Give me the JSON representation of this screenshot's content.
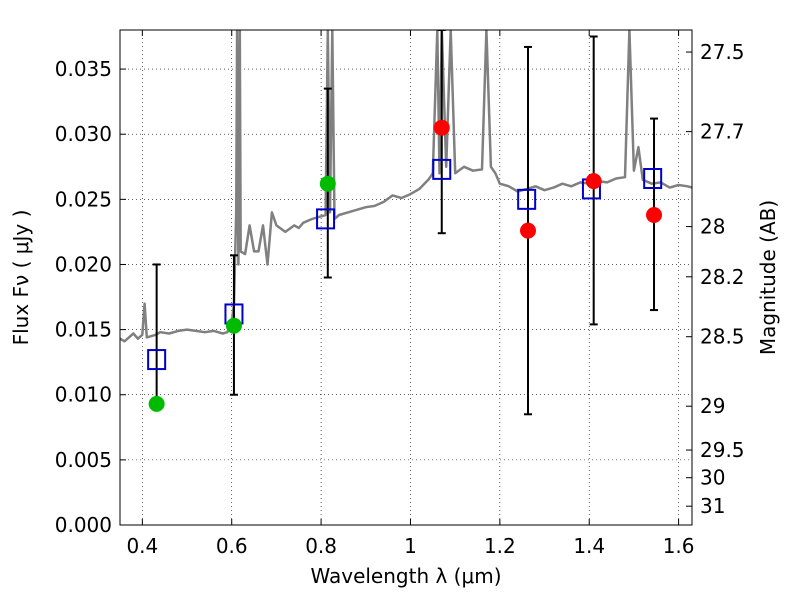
{
  "chart_data": {
    "type": "scatter",
    "xlabel": "Wavelength  λ (μm)",
    "ylabel": "Flux  Fν  ( μJy )",
    "y2label": "Magnitude (AB)",
    "xlim": [
      0.35,
      1.63
    ],
    "ylim": [
      0.0,
      0.038
    ],
    "x_ticks": [
      0.4,
      0.6,
      0.8,
      1.0,
      1.2,
      1.4,
      1.6
    ],
    "x_tick_labels": [
      "0.4",
      "0.6",
      "0.8",
      "1",
      "1.2",
      "1.4",
      "1.6"
    ],
    "y_ticks": [
      0.0,
      0.005,
      0.01,
      0.015,
      0.02,
      0.025,
      0.03,
      0.035
    ],
    "y_tick_labels": [
      "0.000",
      "0.005",
      "0.010",
      "0.015",
      "0.020",
      "0.025",
      "0.030",
      "0.035"
    ],
    "y2_ticks": [
      27.5,
      27.7,
      28,
      28.2,
      28.5,
      29,
      29.5,
      30,
      31
    ],
    "y2_tick_labels": [
      "27.5",
      "27.7",
      "28",
      "28.2",
      "28.5",
      "29",
      "29.5",
      "30",
      "31"
    ],
    "grid": true,
    "colors": {
      "spectrum": "#808080",
      "model": "#0000cc",
      "observed_green": "#00bb00",
      "observed_red": "#ff0000",
      "errorbar": "#000000"
    },
    "spectrum": {
      "x": [
        0.35,
        0.36,
        0.38,
        0.39,
        0.4,
        0.405,
        0.41,
        0.42,
        0.43,
        0.44,
        0.46,
        0.48,
        0.5,
        0.52,
        0.54,
        0.56,
        0.58,
        0.59,
        0.6,
        0.605,
        0.61,
        0.612,
        0.615,
        0.618,
        0.62,
        0.63,
        0.64,
        0.65,
        0.66,
        0.67,
        0.68,
        0.69,
        0.7,
        0.72,
        0.74,
        0.75,
        0.76,
        0.78,
        0.8,
        0.81,
        0.815,
        0.82,
        0.825,
        0.83,
        0.84,
        0.86,
        0.88,
        0.9,
        0.92,
        0.94,
        0.96,
        0.98,
        1.0,
        1.02,
        1.04,
        1.05,
        1.06,
        1.065,
        1.07,
        1.08,
        1.09,
        1.1,
        1.12,
        1.14,
        1.16,
        1.17,
        1.18,
        1.19,
        1.2,
        1.22,
        1.24,
        1.26,
        1.28,
        1.3,
        1.32,
        1.34,
        1.36,
        1.38,
        1.4,
        1.42,
        1.44,
        1.46,
        1.48,
        1.49,
        1.5,
        1.51,
        1.52,
        1.54,
        1.56,
        1.58,
        1.6,
        1.62,
        1.63
      ],
      "y": [
        0.0143,
        0.0141,
        0.0147,
        0.0143,
        0.0146,
        0.017,
        0.0144,
        0.0145,
        0.0146,
        0.0148,
        0.0147,
        0.0149,
        0.015,
        0.0149,
        0.0148,
        0.0149,
        0.0147,
        0.0148,
        0.0155,
        0.017,
        0.024,
        0.038,
        0.02,
        0.038,
        0.021,
        0.0208,
        0.023,
        0.021,
        0.021,
        0.023,
        0.02,
        0.024,
        0.023,
        0.0225,
        0.023,
        0.0228,
        0.0232,
        0.0235,
        0.0237,
        0.0238,
        0.038,
        0.024,
        0.038,
        0.0235,
        0.0238,
        0.024,
        0.0242,
        0.0244,
        0.0245,
        0.0248,
        0.0253,
        0.0251,
        0.0254,
        0.0258,
        0.0265,
        0.027,
        0.038,
        0.027,
        0.038,
        0.0275,
        0.038,
        0.027,
        0.0275,
        0.0272,
        0.0273,
        0.038,
        0.0275,
        0.027,
        0.0262,
        0.026,
        0.0256,
        0.0258,
        0.026,
        0.0257,
        0.0259,
        0.0262,
        0.026,
        0.0263,
        0.0262,
        0.0264,
        0.0263,
        0.0266,
        0.0267,
        0.038,
        0.0272,
        0.029,
        0.0265,
        0.0262,
        0.0263,
        0.0259,
        0.0261,
        0.026,
        0.0259
      ]
    },
    "model_points": {
      "x": [
        0.432,
        0.605,
        0.81,
        1.07,
        1.26,
        1.405,
        1.542
      ],
      "y": [
        0.0127,
        0.0162,
        0.0235,
        0.0273,
        0.025,
        0.0258,
        0.0266
      ]
    },
    "observed_points": [
      {
        "x": 0.432,
        "y": 0.0093,
        "err_low": 0.0093,
        "err_high": 0.02,
        "color": "green"
      },
      {
        "x": 0.605,
        "y": 0.0153,
        "err_low": 0.01,
        "err_high": 0.0207,
        "color": "green"
      },
      {
        "x": 0.815,
        "y": 0.0262,
        "err_low": 0.019,
        "err_high": 0.0335,
        "color": "green"
      },
      {
        "x": 1.07,
        "y": 0.0305,
        "err_low": 0.0224,
        "err_high": 0.038,
        "color": "red"
      },
      {
        "x": 1.263,
        "y": 0.0226,
        "err_low": 0.0085,
        "err_high": 0.0367,
        "color": "red"
      },
      {
        "x": 1.41,
        "y": 0.0264,
        "err_low": 0.0154,
        "err_high": 0.0375,
        "color": "red"
      },
      {
        "x": 1.545,
        "y": 0.0238,
        "err_low": 0.0165,
        "err_high": 0.0312,
        "color": "red"
      }
    ]
  }
}
